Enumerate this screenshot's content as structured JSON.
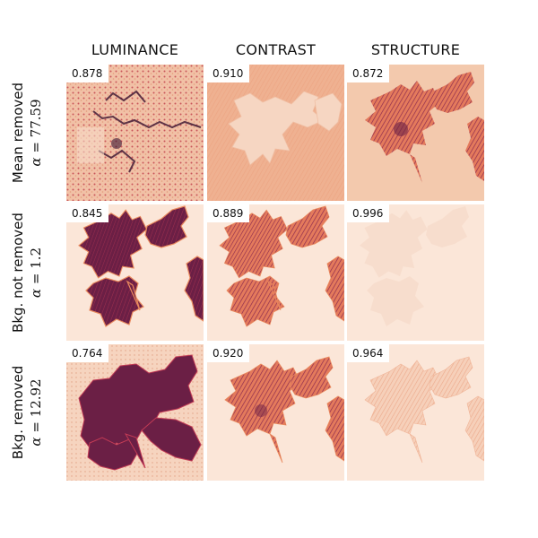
{
  "columns": [
    "LUMINANCE",
    "CONTRAST",
    "STRUCTURE"
  ],
  "rows": [
    {
      "label": "Mean removed",
      "alpha_symbol": "α",
      "alpha_eq": " = 77.59"
    },
    {
      "label": "Bkg. not removed",
      "alpha_symbol": "α",
      "alpha_eq": " = 1.2"
    },
    {
      "label": "Bkg. removed",
      "alpha_symbol": "α",
      "alpha_eq": " = 12.92"
    }
  ],
  "scores": [
    [
      "0.878",
      "0.910",
      "0.872"
    ],
    [
      "0.845",
      "0.889",
      "0.996"
    ],
    [
      "0.764",
      "0.920",
      "0.964"
    ]
  ],
  "colors": {
    "background_light": "#fbe6d8",
    "cell_dark": "#6b1f45",
    "cell_mid": "#c23b55",
    "cell_orange": "#e98a5e",
    "cell_pale": "#f2c3a3"
  }
}
